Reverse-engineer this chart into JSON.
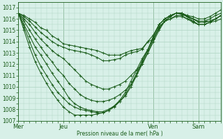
{
  "xlabel": "Pression niveau de la mer( hPa )",
  "ylim": [
    1007,
    1017.5
  ],
  "xlim": [
    0,
    108
  ],
  "day_ticks": [
    0,
    24,
    72,
    96
  ],
  "day_labels": [
    "Mer",
    "Jeu",
    "Ven",
    "Sam"
  ],
  "bg_color": "#d8f0e8",
  "grid_color": "#aed4c2",
  "line_color": "#1a5c1a",
  "ytick_vals": [
    1007,
    1008,
    1009,
    1010,
    1011,
    1012,
    1013,
    1014,
    1015,
    1016,
    1017
  ],
  "series": [
    {
      "x": [
        0,
        3,
        6,
        9,
        12,
        15,
        18,
        21,
        24,
        27,
        30,
        33,
        36,
        39,
        42,
        45,
        48,
        51,
        54,
        57,
        60,
        63,
        66,
        69,
        72,
        75,
        78,
        81,
        84,
        87,
        90,
        93,
        96,
        99,
        102,
        105,
        108
      ],
      "y": [
        1016.5,
        1016.3,
        1016.0,
        1015.7,
        1015.2,
        1015.0,
        1014.5,
        1014.2,
        1013.8,
        1013.7,
        1013.6,
        1013.5,
        1013.4,
        1013.3,
        1013.2,
        1013.0,
        1012.8,
        1012.8,
        1012.8,
        1013.0,
        1013.2,
        1013.3,
        1013.4,
        1014.0,
        1014.2,
        1015.2,
        1015.8,
        1016.0,
        1016.2,
        1016.2,
        1016.0,
        1015.8,
        1015.5,
        1015.5,
        1015.7,
        1015.8,
        1016.0
      ]
    },
    {
      "x": [
        0,
        3,
        6,
        9,
        12,
        15,
        18,
        21,
        24,
        27,
        30,
        33,
        36,
        39,
        42,
        45,
        48,
        51,
        54,
        57,
        60,
        63,
        66,
        69,
        72,
        75,
        78,
        81,
        84,
        87,
        90,
        93,
        96,
        99,
        102,
        105,
        108
      ],
      "y": [
        1016.5,
        1016.2,
        1015.8,
        1015.3,
        1014.8,
        1014.4,
        1014.0,
        1013.7,
        1013.5,
        1013.3,
        1013.2,
        1013.1,
        1013.0,
        1012.8,
        1012.6,
        1012.3,
        1012.3,
        1012.4,
        1012.5,
        1012.8,
        1013.0,
        1013.1,
        1013.3,
        1014.0,
        1014.6,
        1015.5,
        1016.0,
        1016.3,
        1016.5,
        1016.4,
        1016.2,
        1016.0,
        1015.7,
        1015.7,
        1015.8,
        1016.0,
        1016.3
      ]
    },
    {
      "x": [
        0,
        3,
        6,
        9,
        12,
        15,
        18,
        21,
        24,
        27,
        30,
        33,
        36,
        39,
        42,
        45,
        48,
        51,
        54,
        57,
        60,
        63,
        66,
        69,
        72,
        75,
        78,
        81,
        84,
        87,
        90,
        93,
        96,
        99,
        102,
        105,
        108
      ],
      "y": [
        1016.5,
        1016.0,
        1015.5,
        1014.8,
        1014.2,
        1013.7,
        1013.2,
        1012.8,
        1012.5,
        1012.0,
        1011.5,
        1011.0,
        1010.5,
        1010.2,
        1010.0,
        1009.8,
        1009.8,
        1010.0,
        1010.2,
        1010.5,
        1011.0,
        1011.5,
        1012.0,
        1013.0,
        1014.0,
        1015.0,
        1015.8,
        1016.2,
        1016.5,
        1016.5,
        1016.3,
        1016.2,
        1016.0,
        1016.0,
        1016.2,
        1016.5,
        1016.8
      ]
    },
    {
      "x": [
        0,
        3,
        6,
        9,
        12,
        15,
        18,
        21,
        24,
        27,
        30,
        33,
        36,
        39,
        42,
        45,
        48,
        51,
        54,
        57,
        60,
        63,
        66,
        69,
        72,
        75,
        78,
        81,
        84,
        87,
        90,
        93,
        96,
        99,
        102,
        105,
        108
      ],
      "y": [
        1016.5,
        1015.8,
        1015.0,
        1014.2,
        1013.5,
        1012.8,
        1012.2,
        1011.5,
        1011.0,
        1010.3,
        1009.8,
        1009.3,
        1009.0,
        1008.8,
        1008.7,
        1008.7,
        1008.8,
        1009.0,
        1009.3,
        1009.7,
        1010.2,
        1011.0,
        1012.0,
        1013.0,
        1014.2,
        1015.2,
        1015.8,
        1016.2,
        1016.5,
        1016.5,
        1016.2,
        1016.0,
        1015.8,
        1015.8,
        1015.8,
        1016.0,
        1016.3
      ]
    },
    {
      "x": [
        0,
        3,
        6,
        9,
        12,
        15,
        18,
        21,
        24,
        27,
        30,
        33,
        36,
        39,
        42,
        45,
        48,
        51,
        54,
        57,
        60,
        63,
        66,
        69,
        72,
        75,
        78,
        81,
        84,
        87,
        90,
        93,
        96,
        99,
        102,
        105,
        108
      ],
      "y": [
        1016.5,
        1015.5,
        1014.5,
        1013.5,
        1012.8,
        1012.0,
        1011.2,
        1010.5,
        1009.8,
        1009.0,
        1008.5,
        1008.2,
        1008.0,
        1007.9,
        1007.8,
        1007.8,
        1008.0,
        1008.3,
        1008.7,
        1009.2,
        1010.0,
        1011.0,
        1012.2,
        1013.2,
        1014.5,
        1015.5,
        1016.0,
        1016.3,
        1016.5,
        1016.5,
        1016.3,
        1016.0,
        1015.8,
        1015.8,
        1016.0,
        1016.3,
        1016.5
      ]
    },
    {
      "x": [
        0,
        3,
        6,
        9,
        12,
        15,
        18,
        21,
        24,
        27,
        30,
        33,
        36,
        39,
        42,
        45,
        48,
        51,
        54,
        57,
        60,
        63,
        66,
        69,
        72,
        75,
        78,
        81,
        84,
        87,
        90,
        93,
        96,
        99,
        102,
        105,
        108
      ],
      "y": [
        1016.5,
        1015.3,
        1014.0,
        1012.8,
        1011.8,
        1011.0,
        1010.2,
        1009.5,
        1009.0,
        1008.5,
        1008.2,
        1008.0,
        1007.9,
        1007.8,
        1007.7,
        1007.7,
        1007.9,
        1008.2,
        1008.7,
        1009.3,
        1010.2,
        1011.2,
        1012.3,
        1013.3,
        1014.5,
        1015.5,
        1016.0,
        1016.3,
        1016.5,
        1016.5,
        1016.2,
        1015.8,
        1015.5,
        1015.5,
        1015.7,
        1016.0,
        1016.3
      ]
    },
    {
      "x": [
        0,
        3,
        6,
        9,
        12,
        15,
        18,
        21,
        24,
        27,
        30,
        33,
        36,
        39,
        42,
        45,
        48,
        51,
        54,
        57,
        60,
        63,
        66,
        69,
        72,
        75,
        78,
        81,
        84,
        87,
        90,
        93,
        96,
        99,
        102,
        105,
        108
      ],
      "y": [
        1016.5,
        1015.0,
        1013.5,
        1012.2,
        1011.2,
        1010.3,
        1009.5,
        1008.8,
        1008.2,
        1007.8,
        1007.5,
        1007.5,
        1007.5,
        1007.5,
        1007.6,
        1007.7,
        1007.9,
        1008.3,
        1008.8,
        1009.5,
        1010.5,
        1011.5,
        1012.5,
        1013.3,
        1014.3,
        1015.3,
        1015.8,
        1016.0,
        1016.3,
        1016.3,
        1016.0,
        1015.7,
        1015.5,
        1015.5,
        1015.7,
        1016.0,
        1016.3
      ]
    }
  ]
}
